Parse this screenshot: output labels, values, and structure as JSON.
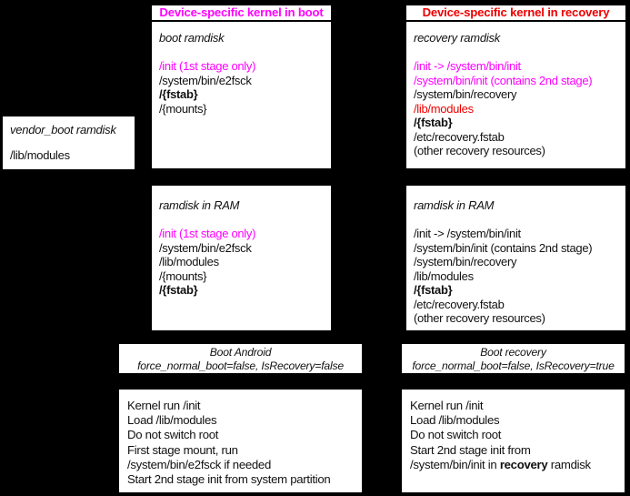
{
  "colors": {
    "background": "#000000",
    "box_background": "#ffffff",
    "text": "#111111",
    "magenta": "#ff00ff",
    "red": "#ee0000"
  },
  "vendor_box": {
    "title": "vendor_boot ramdisk",
    "lines": [
      {
        "text": "/lib/modules"
      }
    ]
  },
  "boot_column": {
    "header": "Device-specific kernel in boot",
    "ramdisk_box": {
      "title": "boot ramdisk",
      "lines": [
        {
          "text": "/init (1st stage only)",
          "style": "magenta"
        },
        {
          "text": "/system/bin/e2fsck"
        },
        {
          "text": "/{fstab}",
          "style": "bold"
        },
        {
          "text": "/{mounts}"
        }
      ]
    },
    "ram_box": {
      "title": "ramdisk in RAM",
      "lines": [
        {
          "text": "/init (1st stage only)",
          "style": "magenta"
        },
        {
          "text": "/system/bin/e2fsck"
        },
        {
          "text": "/lib/modules"
        },
        {
          "text": "/{mounts}"
        },
        {
          "text": "/{fstab}",
          "style": "bold"
        }
      ]
    },
    "boot_label": {
      "line1": "Boot Android",
      "line2": "force_normal_boot=false, IsRecovery=false"
    },
    "steps_box": {
      "lines": [
        {
          "text": "Kernel run /init"
        },
        {
          "text": "Load /lib/modules"
        },
        {
          "text": "Do not switch root"
        },
        {
          "text": "First stage mount, run"
        },
        {
          "text": "/system/bin/e2fsck if needed"
        },
        {
          "text": "Start 2nd stage init from system partition"
        }
      ]
    }
  },
  "recovery_column": {
    "header": "Device-specific kernel in recovery",
    "ramdisk_box": {
      "title": "recovery ramdisk",
      "lines": [
        {
          "text": "/init -> /system/bin/init",
          "style": "magenta"
        },
        {
          "text": "/system/bin/init (contains 2nd stage)",
          "style": "magenta"
        },
        {
          "text": "/system/bin/recovery"
        },
        {
          "text": "/lib/modules",
          "style": "red"
        },
        {
          "text": "/{fstab}",
          "style": "bold"
        },
        {
          "text": "/etc/recovery.fstab"
        },
        {
          "text": "(other recovery resources)"
        }
      ]
    },
    "ram_box": {
      "title": "ramdisk in RAM",
      "lines": [
        {
          "text": "/init -> /system/bin/init"
        },
        {
          "text": "/system/bin/init (contains 2nd stage)"
        },
        {
          "text": "/system/bin/recovery"
        },
        {
          "text": "/lib/modules"
        },
        {
          "text": "/{fstab}",
          "style": "bold"
        },
        {
          "text": "/etc/recovery.fstab"
        },
        {
          "text": "(other recovery resources)"
        }
      ]
    },
    "boot_label": {
      "line1": "Boot recovery",
      "line2": "force_normal_boot=false, IsRecovery=true"
    },
    "steps_box": {
      "lines": [
        {
          "text": "Kernel run /init"
        },
        {
          "text": "Load /lib/modules"
        },
        {
          "text": "Do not switch root"
        },
        {
          "text": "Start 2nd stage init from"
        },
        {
          "segments": [
            {
              "text": "/system/bin/init in "
            },
            {
              "text": "recovery",
              "bold": true
            },
            {
              "text": " ramdisk"
            }
          ]
        }
      ]
    }
  }
}
